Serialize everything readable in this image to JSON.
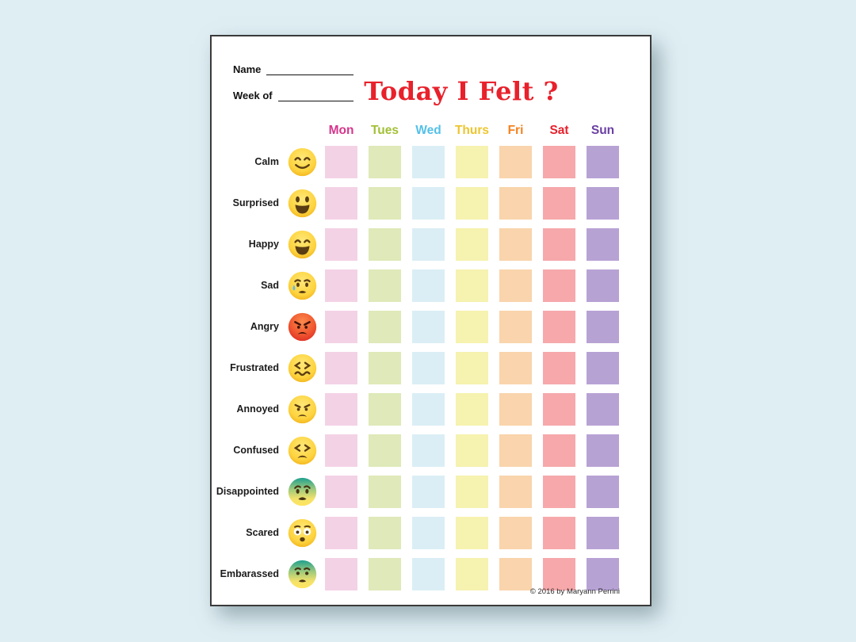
{
  "page": {
    "background_color": "#dfeef3",
    "paper_color": "#ffffff",
    "border_color": "#3a3a3a"
  },
  "header": {
    "name_label": "Name",
    "name_value": "",
    "week_label": "Week of",
    "week_value": "",
    "title": "Today I Felt ?",
    "title_color": "#e8212b"
  },
  "days": [
    {
      "label": "Mon",
      "header_color": "#d6358c",
      "cell_color": "#f4d2e6"
    },
    {
      "label": "Tues",
      "header_color": "#a2c037",
      "cell_color": "#dfe9b9"
    },
    {
      "label": "Wed",
      "header_color": "#54c0e8",
      "cell_color": "#dbeef5"
    },
    {
      "label": "Thurs",
      "header_color": "#ecc52f",
      "cell_color": "#f6f2af"
    },
    {
      "label": "Fri",
      "header_color": "#f58220",
      "cell_color": "#f9d4ac"
    },
    {
      "label": "Sat",
      "header_color": "#e8202c",
      "cell_color": "#f6a8ab"
    },
    {
      "label": "Sun",
      "header_color": "#6a3fa3",
      "cell_color": "#b7a2d4"
    }
  ],
  "emotions": [
    {
      "label": "Calm",
      "icon": "calm-emoji"
    },
    {
      "label": "Surprised",
      "icon": "surprised-emoji"
    },
    {
      "label": "Happy",
      "icon": "happy-emoji"
    },
    {
      "label": "Sad",
      "icon": "sad-emoji"
    },
    {
      "label": "Angry",
      "icon": "angry-emoji"
    },
    {
      "label": "Frustrated",
      "icon": "frustrated-emoji"
    },
    {
      "label": "Annoyed",
      "icon": "annoyed-emoji"
    },
    {
      "label": "Confused",
      "icon": "confused-emoji"
    },
    {
      "label": "Disappointed",
      "icon": "disappointed-emoji"
    },
    {
      "label": "Scared",
      "icon": "scared-emoji"
    },
    {
      "label": "Embarassed",
      "icon": "embarassed-emoji"
    }
  ],
  "footer": {
    "copyright": "© 2016 by Maryann Perrini"
  }
}
